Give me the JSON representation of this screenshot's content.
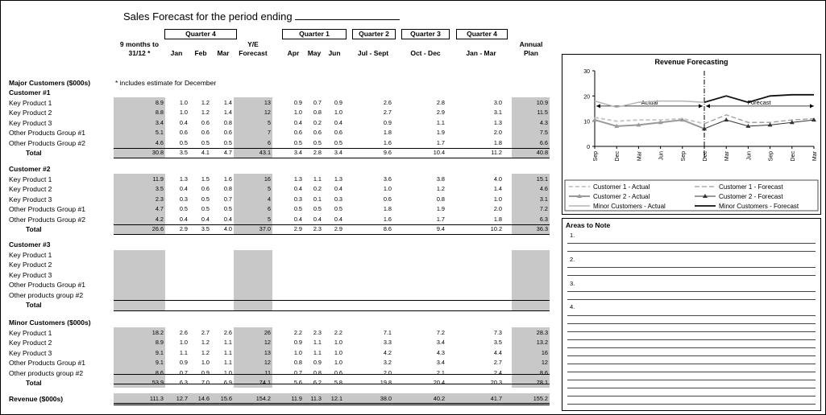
{
  "title": "Sales Forecast for the period ending",
  "note": "* includes estimate for December",
  "quarters": {
    "q4": "Quarter 4",
    "q1": "Quarter 1",
    "q2": "Quarter 2",
    "q3": "Quarter 3",
    "q4b": "Quarter 4"
  },
  "headers": {
    "ytd_1": "9 months to",
    "ytd_2": "31/12 *",
    "jan": "Jan",
    "feb": "Feb",
    "mar": "Mar",
    "ye_1": "Y/E",
    "ye_2": "Forecast",
    "apr": "Apr",
    "may": "May",
    "jun": "Jun",
    "julsept": "Jul - Sept",
    "octdec": "Oct - Dec",
    "janmar": "Jan - Mar",
    "plan_1": "Annual",
    "plan_2": "Plan"
  },
  "major_label": "Major Customers ($000s)",
  "sections": [
    {
      "name": "Customer #1",
      "rows": [
        {
          "label": "Key Product 1",
          "v": [
            "8.9",
            "1.0",
            "1.2",
            "1.4",
            "13",
            "0.9",
            "0.7",
            "0.9",
            "2.6",
            "2.8",
            "3.0",
            "10.9"
          ]
        },
        {
          "label": "Key Product 2",
          "v": [
            "8.8",
            "1.0",
            "1.2",
            "1.4",
            "12",
            "1.0",
            "0.8",
            "1.0",
            "2.7",
            "2.9",
            "3.1",
            "11.5"
          ]
        },
        {
          "label": "Key Product 3",
          "v": [
            "3.4",
            "0.4",
            "0.6",
            "0.8",
            "5",
            "0.4",
            "0.2",
            "0.4",
            "0.9",
            "1.1",
            "1.3",
            "4.3"
          ]
        },
        {
          "label": "Other Products Group #1",
          "v": [
            "5.1",
            "0.6",
            "0.6",
            "0.6",
            "7",
            "0.6",
            "0.6",
            "0.6",
            "1.8",
            "1.9",
            "2.0",
            "7.5"
          ]
        },
        {
          "label": "Other Products Group #2",
          "v": [
            "4.6",
            "0.5",
            "0.5",
            "0.5",
            "6",
            "0.5",
            "0.5",
            "0.5",
            "1.6",
            "1.7",
            "1.8",
            "6.6"
          ]
        }
      ],
      "total": {
        "label": "Total",
        "v": [
          "30.8",
          "3.5",
          "4.1",
          "4.7",
          "43.1",
          "3.4",
          "2.8",
          "3.4",
          "9.6",
          "10.4",
          "11.2",
          "40.8"
        ]
      }
    },
    {
      "name": "Customer #2",
      "rows": [
        {
          "label": "Key Product 1",
          "v": [
            "11.9",
            "1.3",
            "1.5",
            "1.6",
            "16",
            "1.3",
            "1.1",
            "1.3",
            "3.6",
            "3.8",
            "4.0",
            "15.1"
          ]
        },
        {
          "label": "Key Product 2",
          "v": [
            "3.5",
            "0.4",
            "0.6",
            "0.8",
            "5",
            "0.4",
            "0.2",
            "0.4",
            "1.0",
            "1.2",
            "1.4",
            "4.6"
          ]
        },
        {
          "label": "Key Product 3",
          "v": [
            "2.3",
            "0.3",
            "0.5",
            "0.7",
            "4",
            "0.3",
            "0.1",
            "0.3",
            "0.6",
            "0.8",
            "1.0",
            "3.1"
          ]
        },
        {
          "label": "Other Products Group #1",
          "v": [
            "4.7",
            "0.5",
            "0.5",
            "0.5",
            "6",
            "0.5",
            "0.5",
            "0.5",
            "1.8",
            "1.9",
            "2.0",
            "7.2"
          ]
        },
        {
          "label": "Other Products Group #2",
          "v": [
            "4.2",
            "0.4",
            "0.4",
            "0.4",
            "5",
            "0.4",
            "0.4",
            "0.4",
            "1.6",
            "1.7",
            "1.8",
            "6.3"
          ]
        }
      ],
      "total": {
        "label": "Total",
        "v": [
          "26.6",
          "2.9",
          "3.5",
          "4.0",
          "37.0",
          "2.9",
          "2.3",
          "2.9",
          "8.6",
          "9.4",
          "10.2",
          "36.3"
        ]
      }
    },
    {
      "name": "Customer #3",
      "rows": [
        {
          "label": "Key Product 1",
          "v": []
        },
        {
          "label": "Key Product 2",
          "v": []
        },
        {
          "label": "Key Product 3",
          "v": []
        },
        {
          "label": "Other Products Group #1",
          "v": []
        },
        {
          "label": "Other products group #2",
          "v": []
        }
      ],
      "total": {
        "label": "Total",
        "v": []
      }
    },
    {
      "name": "Minor Customers ($000s)",
      "rows": [
        {
          "label": "Key Product 1",
          "v": [
            "18.2",
            "2.6",
            "2.7",
            "2.6",
            "26",
            "2.2",
            "2.3",
            "2.2",
            "7.1",
            "7.2",
            "7.3",
            "28.3"
          ]
        },
        {
          "label": "Key Product 2",
          "v": [
            "8.9",
            "1.0",
            "1.2",
            "1.1",
            "12",
            "0.9",
            "1.1",
            "1.0",
            "3.3",
            "3.4",
            "3.5",
            "13.2"
          ]
        },
        {
          "label": "Key Product 3",
          "v": [
            "9.1",
            "1.1",
            "1.2",
            "1.1",
            "13",
            "1.0",
            "1.1",
            "1.0",
            "4.2",
            "4.3",
            "4.4",
            "16"
          ]
        },
        {
          "label": "Other Products Group #1",
          "v": [
            "9.1",
            "0.9",
            "1.0",
            "1.1",
            "12",
            "0.8",
            "0.9",
            "1.0",
            "3.2",
            "3.4",
            "2.7",
            "12"
          ]
        },
        {
          "label": "Other products group #2",
          "v": [
            "8.6",
            "0.7",
            "0.9",
            "1.0",
            "11",
            "0.7",
            "0.8",
            "0.6",
            "2.0",
            "2.1",
            "2.4",
            "8.6"
          ]
        }
      ],
      "total": {
        "label": "Total",
        "v": [
          "53.9",
          "6.3",
          "7.0",
          "6.9",
          "74.1",
          "5.6",
          "6.2",
          "5.8",
          "19.8",
          "20.4",
          "20.3",
          "78.1"
        ]
      }
    }
  ],
  "revenue": {
    "label": "Revenue ($000s)",
    "v": [
      "111.3",
      "12.7",
      "14.6",
      "15.6",
      "154.2",
      "11.9",
      "11.3",
      "12.1",
      "38.0",
      "40.2",
      "41.7",
      "155.2"
    ]
  },
  "chart_data": {
    "type": "line",
    "title": "Revenue Forecasting",
    "x": [
      "Sep",
      "Dec",
      "Mar",
      "Jun",
      "Sep",
      "Dec",
      "Mar",
      "Jun",
      "Sep",
      "Dec",
      "Mar"
    ],
    "ylim": [
      0,
      30
    ],
    "yticks": [
      "0",
      "10",
      "20",
      "30"
    ],
    "annotations": {
      "actual": "Actual",
      "forecast": "Forecast"
    },
    "series": [
      {
        "name": "Customer 1 - Actual",
        "color": "#c8c8c8",
        "values": [
          11.5,
          10,
          10.5,
          10.5,
          11,
          9,
          null,
          null,
          null,
          null,
          null
        ]
      },
      {
        "name": "Customer 1 - Forecast",
        "color": "#999999",
        "values": [
          null,
          null,
          null,
          null,
          null,
          9,
          12.5,
          9.5,
          9.5,
          10.5,
          11
        ]
      },
      {
        "name": "Customer 2 - Actual",
        "color": "#999999",
        "values": [
          10.5,
          8,
          8.5,
          9.5,
          10.5,
          7,
          null,
          null,
          null,
          null,
          null
        ]
      },
      {
        "name": "Customer 2 - Forecast",
        "color": "#333333",
        "values": [
          null,
          null,
          null,
          null,
          null,
          7,
          10.5,
          8,
          8.5,
          9.5,
          10.5
        ]
      },
      {
        "name": "Minor Customers - Actual",
        "color": "#b4b4b4",
        "values": [
          18,
          15.5,
          17.5,
          18,
          18,
          17.5,
          null,
          null,
          null,
          null,
          null
        ]
      },
      {
        "name": "Minor Customers - Forecast",
        "color": "#111111",
        "values": [
          null,
          null,
          null,
          null,
          null,
          17.5,
          20,
          17.5,
          20,
          20.5,
          20.5
        ]
      }
    ]
  },
  "notes_panel": {
    "title": "Areas to Note",
    "items": [
      "1.",
      "2.",
      "3.",
      "4."
    ]
  }
}
